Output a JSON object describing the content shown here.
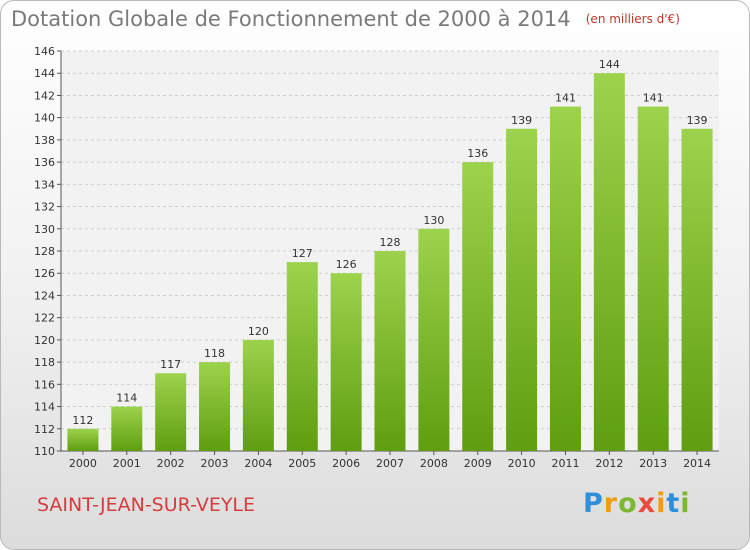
{
  "title": "Dotation Globale de Fonctionnement de 2000 à 2014",
  "unit_note": "(en milliers d'€)",
  "town": "SAINT-JEAN-SUR-VEYLE",
  "logo": {
    "letters": [
      "P",
      "r",
      "o",
      "x",
      "i",
      "t",
      "i"
    ],
    "colors": [
      "#2f8fd8",
      "#f39c12",
      "#7cb82f",
      "#e74c3c",
      "#f39c12",
      "#2f8fd8",
      "#7cb82f"
    ]
  },
  "chart_data": {
    "type": "bar",
    "categories": [
      "2000",
      "2001",
      "2002",
      "2003",
      "2004",
      "2005",
      "2006",
      "2007",
      "2008",
      "2009",
      "2010",
      "2011",
      "2012",
      "2013",
      "2014"
    ],
    "values": [
      112,
      114,
      117,
      118,
      120,
      127,
      126,
      128,
      130,
      136,
      139,
      141,
      144,
      141,
      139
    ],
    "ylim": [
      110,
      146
    ],
    "yticks": [
      110,
      112,
      114,
      116,
      118,
      120,
      122,
      124,
      126,
      128,
      130,
      132,
      134,
      136,
      138,
      140,
      142,
      144,
      146
    ],
    "grid": true,
    "bar_color_top": "#9dd24d",
    "bar_color_bottom": "#5f9e10"
  }
}
